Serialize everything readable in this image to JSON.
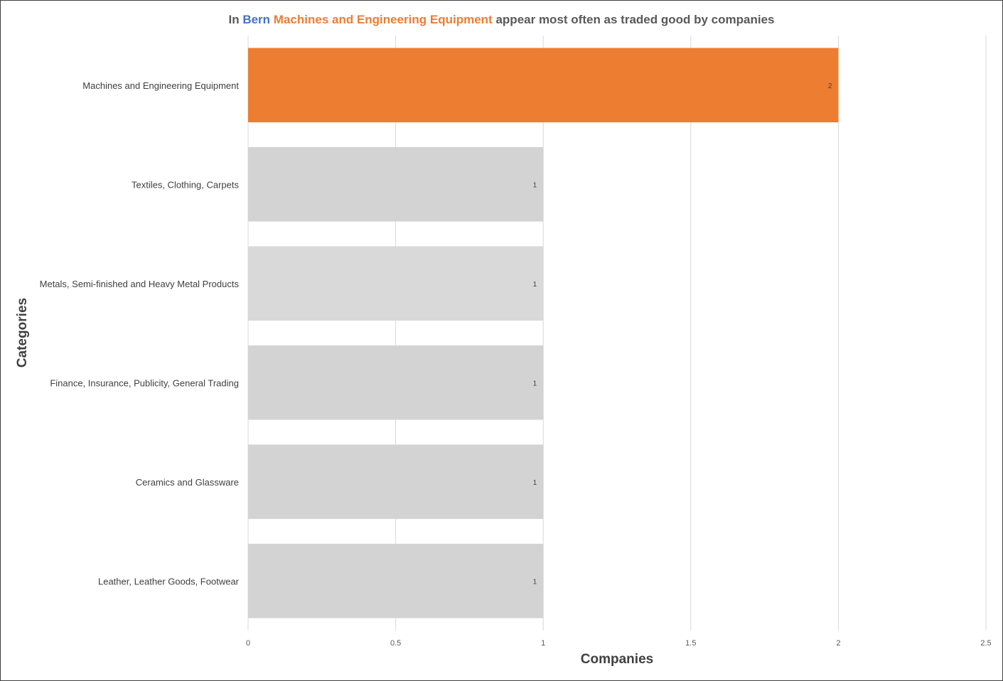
{
  "title": {
    "prefix": "In",
    "city": "Bern",
    "highlight": "Machines and Engineering Equipment",
    "suffix": "appear most often as traded good by companies"
  },
  "colors": {
    "highlight_bar": "#ed7d31",
    "other_bar": "#d3d3d3",
    "alt_bar": "#d9d9d9",
    "gridline": "#d9d9d9",
    "city_text": "#4472c4",
    "highlight_text": "#ed7d31"
  },
  "chart_data": {
    "type": "bar",
    "orientation": "horizontal",
    "categories": [
      "Machines and Engineering Equipment",
      "Textiles, Clothing, Carpets",
      "Metals, Semi-finished and Heavy Metal Products",
      "Finance, Insurance, Publicity, General Trading",
      "Ceramics and Glassware",
      "Leather, Leather Goods, Footwear"
    ],
    "values": [
      2,
      1,
      1,
      1,
      1,
      1
    ],
    "data_labels": [
      "2",
      "1",
      "1",
      "1",
      "1",
      "1"
    ],
    "highlight_index": 0,
    "xlabel": "Companies",
    "ylabel": "Categories",
    "xlim": [
      0,
      2.5
    ],
    "xticks": [
      0,
      0.5,
      1,
      1.5,
      2,
      2.5
    ],
    "xtick_labels": [
      "0",
      "0.5",
      "1",
      "1.5",
      "2",
      "2.5"
    ],
    "grid": "vertical",
    "legend": "none"
  }
}
